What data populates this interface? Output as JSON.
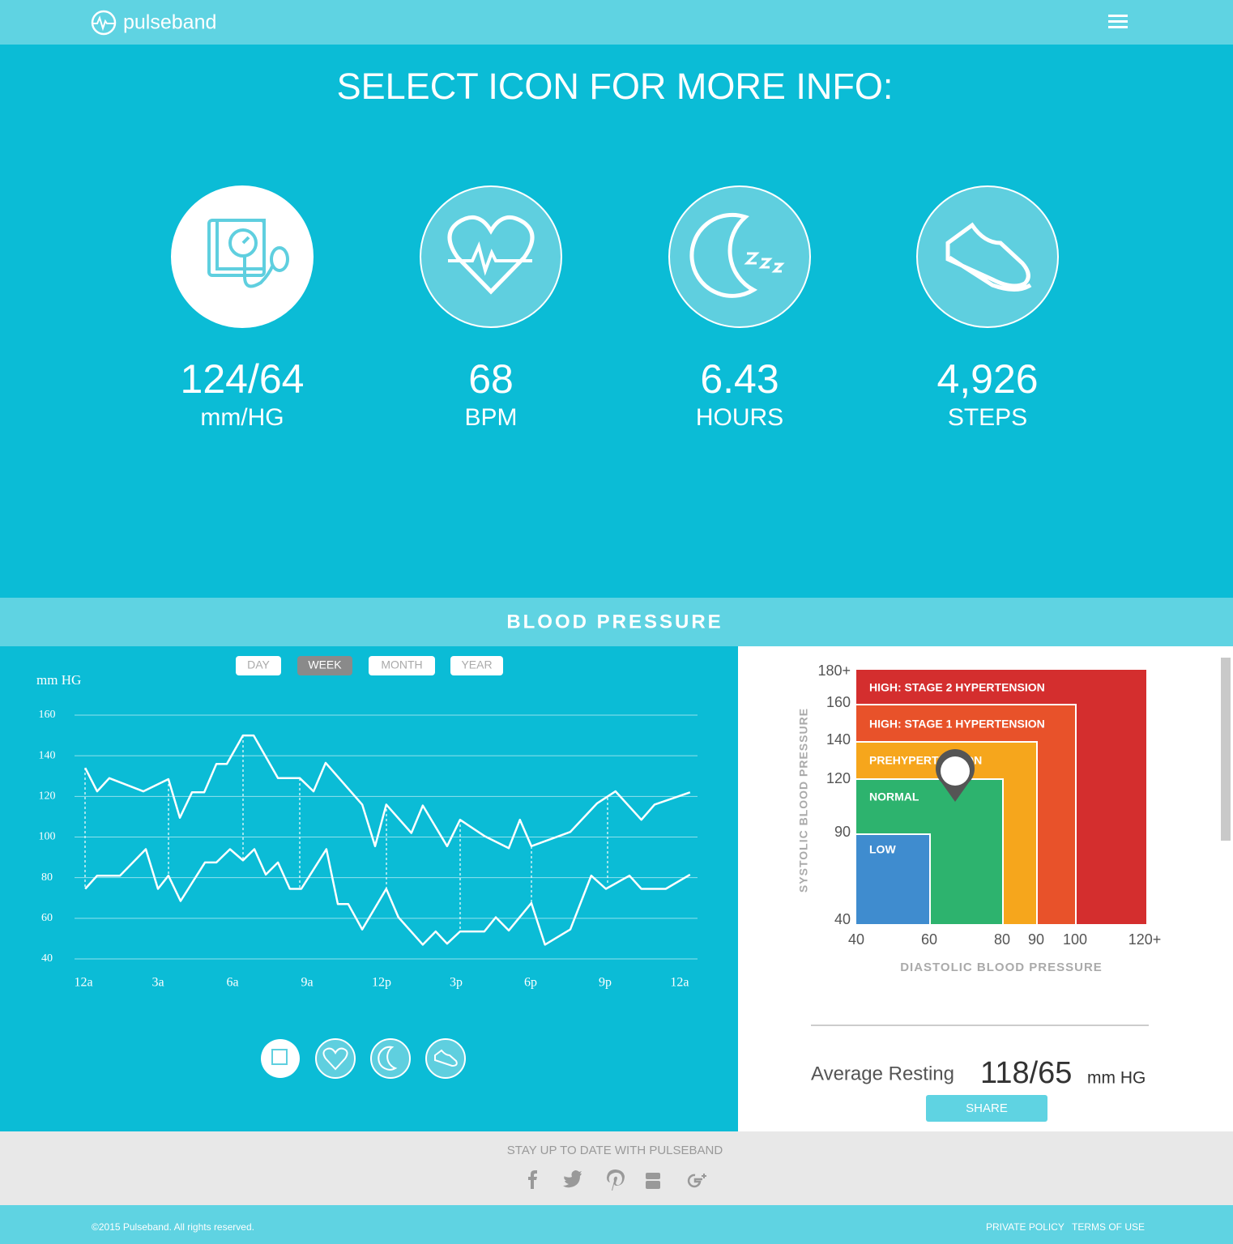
{
  "header": {
    "logo": "pulseband"
  },
  "hero": {
    "title": "SELECT ICON FOR MORE INFO:",
    "metrics": [
      {
        "value": "124/64",
        "unit": "mm/HG"
      },
      {
        "value": "68",
        "unit": "BPM"
      },
      {
        "value": "6.43",
        "unit": "HOURS"
      },
      {
        "value": "4,926",
        "unit": "STEPS"
      }
    ]
  },
  "section": {
    "title": "BLOOD PRESSURE",
    "tabs": [
      "DAY",
      "WEEK",
      "MONTH",
      "YEAR"
    ]
  },
  "chart_data": {
    "type": "line",
    "y_label": "mm HG",
    "xlim": [
      -0.36,
      24.72
    ],
    "xticks": [
      {
        "value": 0,
        "label": "12a"
      },
      {
        "value": 3,
        "label": "3a"
      },
      {
        "value": 6,
        "label": "6a"
      },
      {
        "value": 9,
        "label": "9a"
      },
      {
        "value": 12,
        "label": "12p"
      },
      {
        "value": 15,
        "label": "3p"
      },
      {
        "value": 18,
        "label": "6p"
      },
      {
        "value": 21,
        "label": "9p"
      },
      {
        "value": 24,
        "label": "12a"
      }
    ],
    "ylim": [
      40,
      160
    ],
    "yticks": [
      40,
      60,
      80,
      100,
      120,
      140,
      160
    ],
    "grid": true,
    "series": [
      {
        "color": "#ffffff",
        "x": [
          0.07,
          0.55,
          1.04,
          2.41,
          3.42,
          3.88,
          4.37,
          4.86,
          5.35,
          5.77,
          6.42,
          6.85,
          7.83,
          8.71,
          9.26,
          9.75,
          11.22,
          11.74,
          12.19,
          13.2,
          13.66,
          14.64,
          15.16,
          16.14,
          17.12,
          17.57,
          18.03,
          19.6,
          20.67,
          21.42,
          22.46,
          22.99,
          24.42
        ],
        "values": [
          134,
          122.5,
          129,
          122.5,
          128.5,
          109.5,
          122,
          122,
          136,
          136,
          150,
          150,
          129,
          129,
          122.5,
          136.5,
          116,
          95.5,
          116,
          102,
          115.5,
          95.5,
          108.5,
          100.5,
          94.5,
          108.5,
          95.5,
          102.5,
          116.5,
          122.5,
          108.5,
          116,
          122
        ]
      },
      {
        "color": "#ffffff",
        "x": [
          0.07,
          0.55,
          1.47,
          2.51,
          3.0,
          3.42,
          3.91,
          4.89,
          5.35,
          5.9,
          6.42,
          6.88,
          7.34,
          7.83,
          8.31,
          8.77,
          9.78,
          10.24,
          10.66,
          11.22,
          12.19,
          12.68,
          13.66,
          14.18,
          14.64,
          15.16,
          16.14,
          16.6,
          17.12,
          18.03,
          18.58,
          19.6,
          20.44,
          21.03,
          21.98,
          22.46,
          23.44,
          24.42
        ],
        "values": [
          74.5,
          81,
          81,
          94,
          74.5,
          81,
          68.5,
          87.5,
          87.5,
          94,
          88.5,
          94,
          81.5,
          87.5,
          74.5,
          74.5,
          94,
          67,
          67,
          54.5,
          74.5,
          60.5,
          47,
          53.5,
          47.5,
          53.5,
          53.5,
          60.5,
          54,
          67.5,
          47,
          54.5,
          81,
          74.5,
          81,
          74.5,
          74.5,
          81.5
        ]
      }
    ]
  },
  "zones_chart": {
    "y_label": "SYSTOLIC BLOOD PRESSURE",
    "x_label": "DIASTOLIC BLOOD PRESSURE",
    "yticks": [
      "180+",
      "160",
      "140",
      "120",
      "90",
      "40"
    ],
    "xticks": [
      "40",
      "60",
      "80",
      "90",
      "100",
      "120+"
    ],
    "zones": [
      "HIGH: STAGE 2 HYPERTENSION",
      "HIGH: STAGE 1 HYPERTENSION",
      "PREHYPERTENSION",
      "NORMAL",
      "LOW"
    ]
  },
  "summary": {
    "label": "Average Resting",
    "value": "118/65",
    "unit": "mm HG",
    "button": "SHARE"
  },
  "footer": {
    "tagline": "STAY UP TO DATE WITH PULSEBAND",
    "copyright": "©2015 Pulseband. All rights reserved.",
    "links": [
      "PRIVATE POLICY",
      "TERMS OF USE"
    ]
  }
}
